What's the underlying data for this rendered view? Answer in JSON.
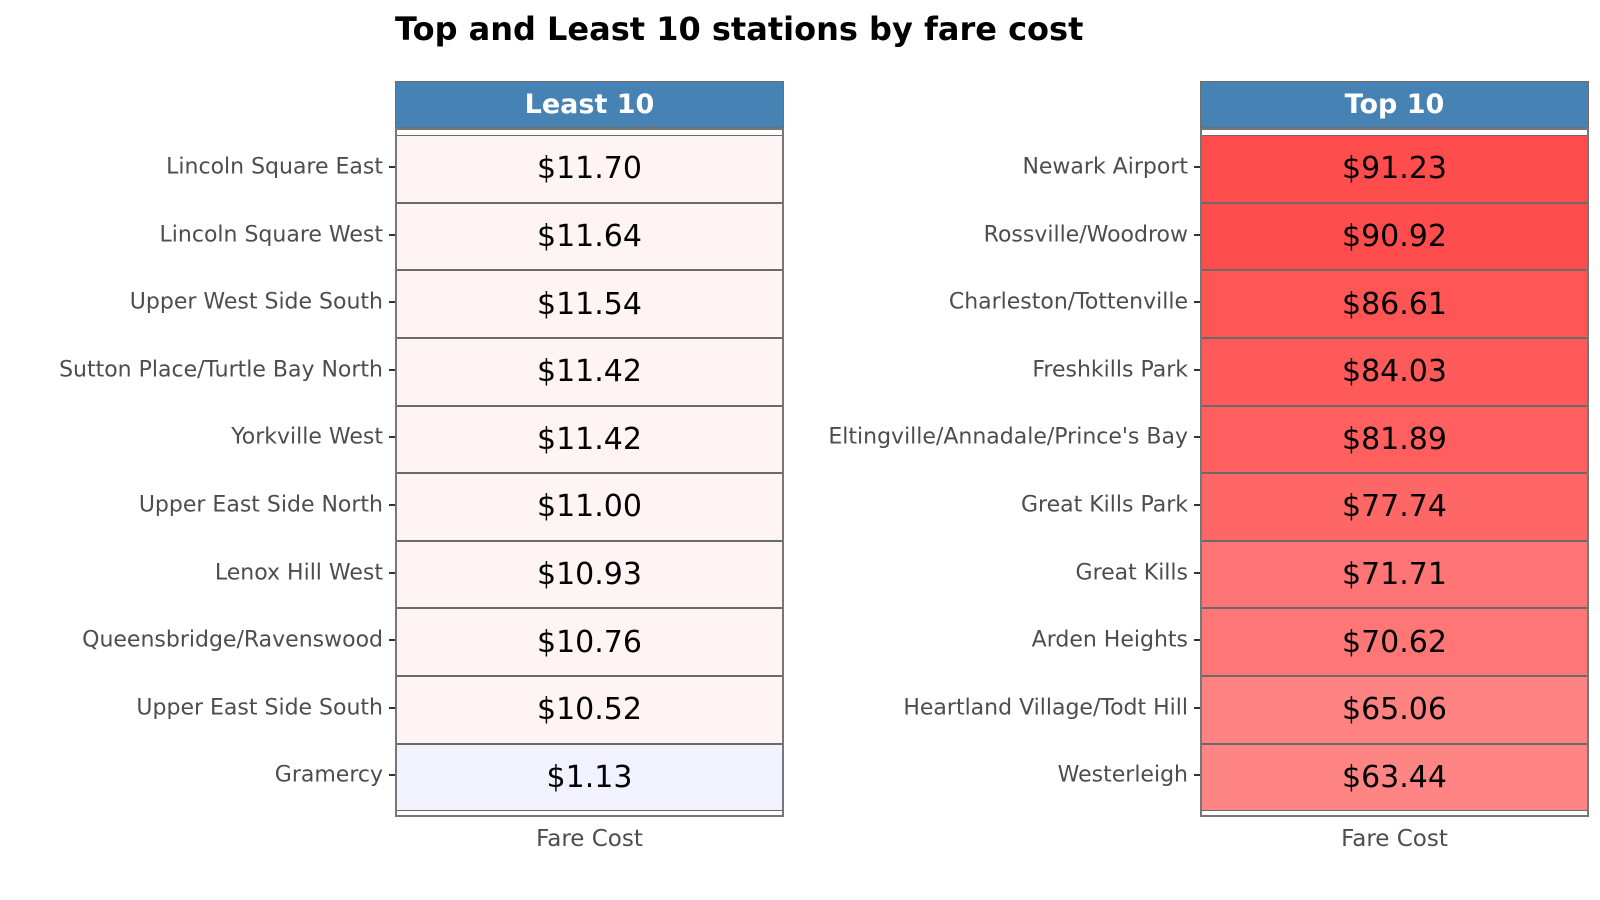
{
  "title": "Top and Least 10 stations by fare cost",
  "chart_data": [
    {
      "type": "table",
      "panel": "Least 10",
      "xlabel": "Fare Cost",
      "categories": [
        "Lincoln Square East",
        "Lincoln Square West",
        "Upper West Side South",
        "Sutton Place/Turtle Bay North",
        "Yorkville West",
        "Upper East Side North",
        "Lenox Hill West",
        "Queensbridge/Ravenswood",
        "Upper East Side South",
        "Gramercy"
      ],
      "values": [
        11.7,
        11.64,
        11.54,
        11.42,
        11.42,
        11.0,
        10.93,
        10.76,
        10.52,
        1.13
      ],
      "labels": [
        "$11.70",
        "$11.64",
        "$11.54",
        "$11.42",
        "$11.42",
        "$11.00",
        "$10.93",
        "$10.76",
        "$10.52",
        "$1.13"
      ]
    },
    {
      "type": "table",
      "panel": "Top 10",
      "xlabel": "Fare Cost",
      "categories": [
        "Newark Airport",
        "Rossville/Woodrow",
        "Charleston/Tottenville",
        "Freshkills Park",
        "Eltingville/Annadale/Prince's Bay",
        "Great Kills Park",
        "Great Kills",
        "Arden Heights",
        "Heartland Village/Todt Hill",
        "Westerleigh"
      ],
      "values": [
        91.23,
        90.92,
        86.61,
        84.03,
        81.89,
        77.74,
        71.71,
        70.62,
        65.06,
        63.44
      ],
      "labels": [
        "$91.23",
        "$90.92",
        "$86.61",
        "$84.03",
        "$81.89",
        "$77.74",
        "$71.71",
        "$70.62",
        "$65.06",
        "$63.44"
      ]
    }
  ],
  "colors": {
    "strip": "#4682b4",
    "low": "#f2f2ff",
    "high": "#ff4a4a",
    "mid": "#fff4f4"
  }
}
